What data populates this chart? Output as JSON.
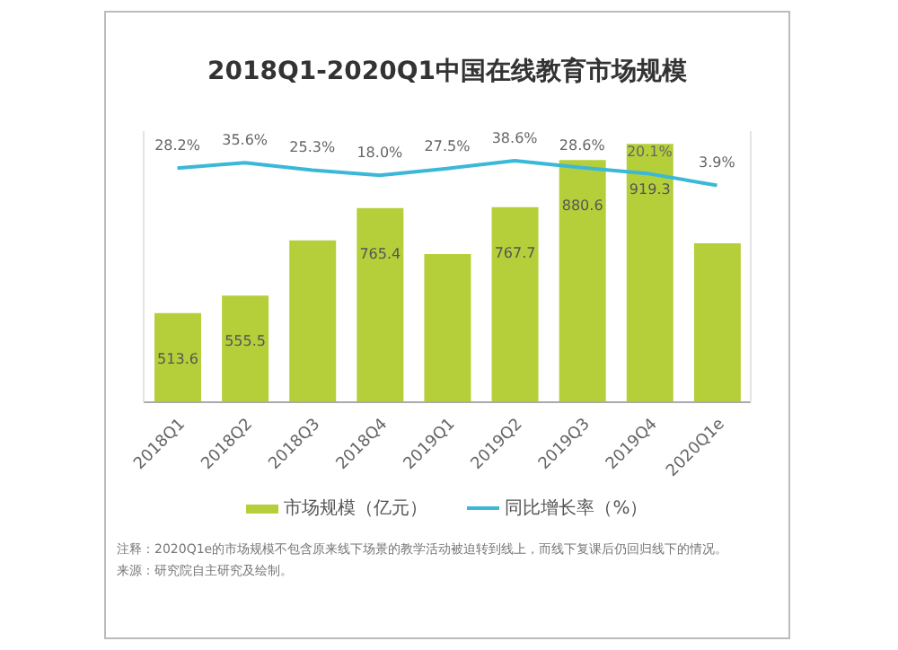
{
  "chart_data": {
    "type": "bar",
    "title": "2018Q1-2020Q1中国在线教育市场规模",
    "categories": [
      "2018Q1",
      "2018Q2",
      "2018Q3",
      "2018Q4",
      "2019Q1",
      "2019Q2",
      "2019Q3",
      "2019Q4",
      "2020Q1e"
    ],
    "series": [
      {
        "name": "市场规模（亿元）",
        "color": "#b5cf3a",
        "values": [
          513.6,
          555.5,
          688,
          765.4,
          655,
          767.7,
          880.6,
          919.3,
          681
        ],
        "value_labels": [
          "513.6",
          "555.5",
          null,
          "765.4",
          null,
          "767.7",
          "880.6",
          "919.3",
          null
        ]
      },
      {
        "name": "同比增长率（%）",
        "type": "line",
        "axis": "y2",
        "color": "#3bb8d8",
        "values": [
          28.2,
          35.6,
          25.3,
          18.0,
          27.5,
          38.6,
          28.6,
          20.1,
          3.9
        ],
        "value_labels": [
          "28.2%",
          "35.6%",
          "25.3%",
          "18.0%",
          "27.5%",
          "38.6%",
          "28.6%",
          "20.1%",
          "3.9%"
        ]
      }
    ],
    "ylim": [
      300,
      950
    ],
    "y2lim": [
      -300,
      80
    ],
    "tick_labels": "x",
    "legend": "bottom",
    "grid": false,
    "marker": "none",
    "line_style": "solid",
    "annotations": [
      "注释：2020Q1e的市场规模不包含原来线下场景的教学活动被迫转到线上，而线下复课后仍回归线下的情况。",
      "来源：研究院自主研究及绘制。"
    ]
  }
}
